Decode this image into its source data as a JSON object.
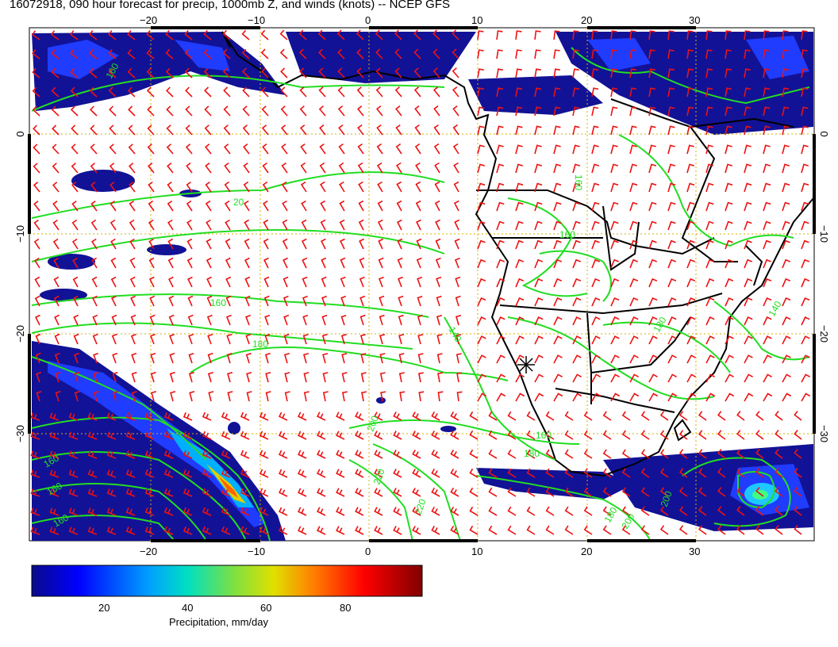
{
  "title": "16072918, 090 hour forecast for precip, 1000mb Z, and winds (knots) -- NCEP GFS",
  "map": {
    "lon_ticks": [
      "−20",
      "−10",
      "0",
      "10",
      "20",
      "30"
    ],
    "lat_ticks_left": [
      "0",
      "−10",
      "−20",
      "−30"
    ],
    "lat_ticks_right": [
      "0",
      "−10",
      "−20",
      "−30"
    ],
    "contour_labels": [
      "160",
      "20",
      "160",
      "180",
      "140",
      "160",
      "180",
      "220",
      "220",
      "200",
      "160",
      "180",
      "160",
      "160",
      "180",
      "160",
      "140",
      "180",
      "200",
      "200"
    ],
    "colors": {
      "contour": "#22dd22",
      "barb": "#ee1111",
      "grid": "#ccaa00",
      "coast": "#000000"
    }
  },
  "colorbar": {
    "labels": [
      "20",
      "40",
      "60",
      "80"
    ],
    "caption": "Precipitation, mm/day",
    "range": [
      0,
      100
    ],
    "colors": [
      "#0a0a8c",
      "#0000ff",
      "#00a0ff",
      "#00e0c0",
      "#80e040",
      "#e0e000",
      "#ff8000",
      "#ff0000",
      "#800000"
    ]
  }
}
